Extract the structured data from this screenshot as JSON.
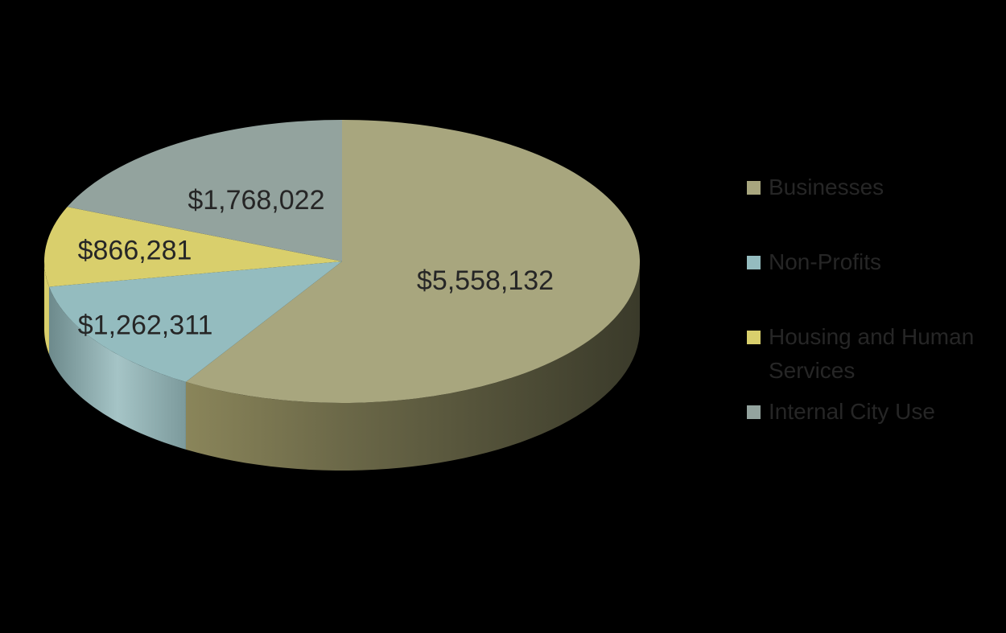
{
  "chart_data": {
    "type": "pie",
    "style": "3d",
    "legend_position": "right",
    "categories": [
      "Businesses",
      "Non-Profits",
      "Housing and Human Services",
      "Internal City Use"
    ],
    "values": [
      5558132,
      1262311,
      866281,
      1768022
    ],
    "value_labels": [
      "$5,558,132",
      "$1,262,311",
      "$866,281",
      "$1,768,022"
    ],
    "colors": [
      "#a8a67e",
      "#94bcbf",
      "#d9cf6c",
      "#93a39e"
    ],
    "legend": [
      {
        "label": "Businesses",
        "color": "#a8a67e"
      },
      {
        "label": "Non-Profits",
        "color": "#94bcbf"
      },
      {
        "label": "Housing and Human Services",
        "color": "#d9cf6c"
      },
      {
        "label": "Internal City Use",
        "color": "#93a39e"
      }
    ]
  }
}
